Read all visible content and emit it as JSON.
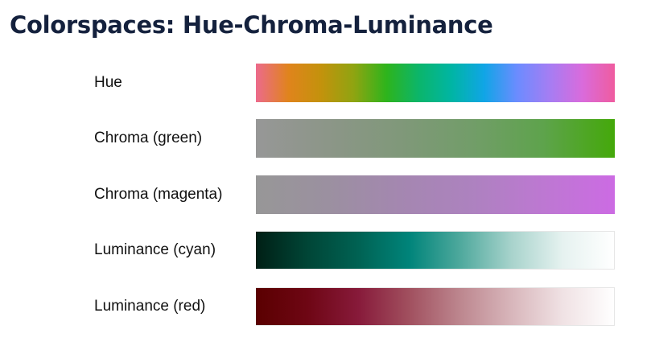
{
  "title": "Colorspaces: Hue-Chroma-Luminance",
  "rows": [
    {
      "label": "Hue",
      "stops": [
        "#ec6a8c",
        "#e0841c",
        "#c3920c",
        "#8fa411",
        "#2eb41c",
        "#0bb56b",
        "#00b5a4",
        "#10a5e6",
        "#6b8cff",
        "#a57df3",
        "#d96bdc",
        "#ef5c9f"
      ]
    },
    {
      "label": "Chroma (green)",
      "stops": [
        "#979797",
        "#8c9688",
        "#80987a",
        "#729d69",
        "#5ea34c",
        "#44a80a"
      ]
    },
    {
      "label": "Chroma (magenta)",
      "stops": [
        "#979797",
        "#9b90a0",
        "#a487b0",
        "#ad82bf",
        "#bd78d2",
        "#cc6be3"
      ]
    },
    {
      "label": "Luminance (cyan)",
      "stops": [
        "#001f15",
        "#004536",
        "#006253",
        "#00847a",
        "#4fa99d",
        "#a8d3cc",
        "#e6f2f0",
        "#ffffff"
      ]
    },
    {
      "label": "Luminance (red)",
      "stops": [
        "#5a0000",
        "#6e0614",
        "#871a3a",
        "#a1505f",
        "#bd878f",
        "#d8b6bb",
        "#f0e2e4",
        "#ffffff"
      ]
    }
  ]
}
